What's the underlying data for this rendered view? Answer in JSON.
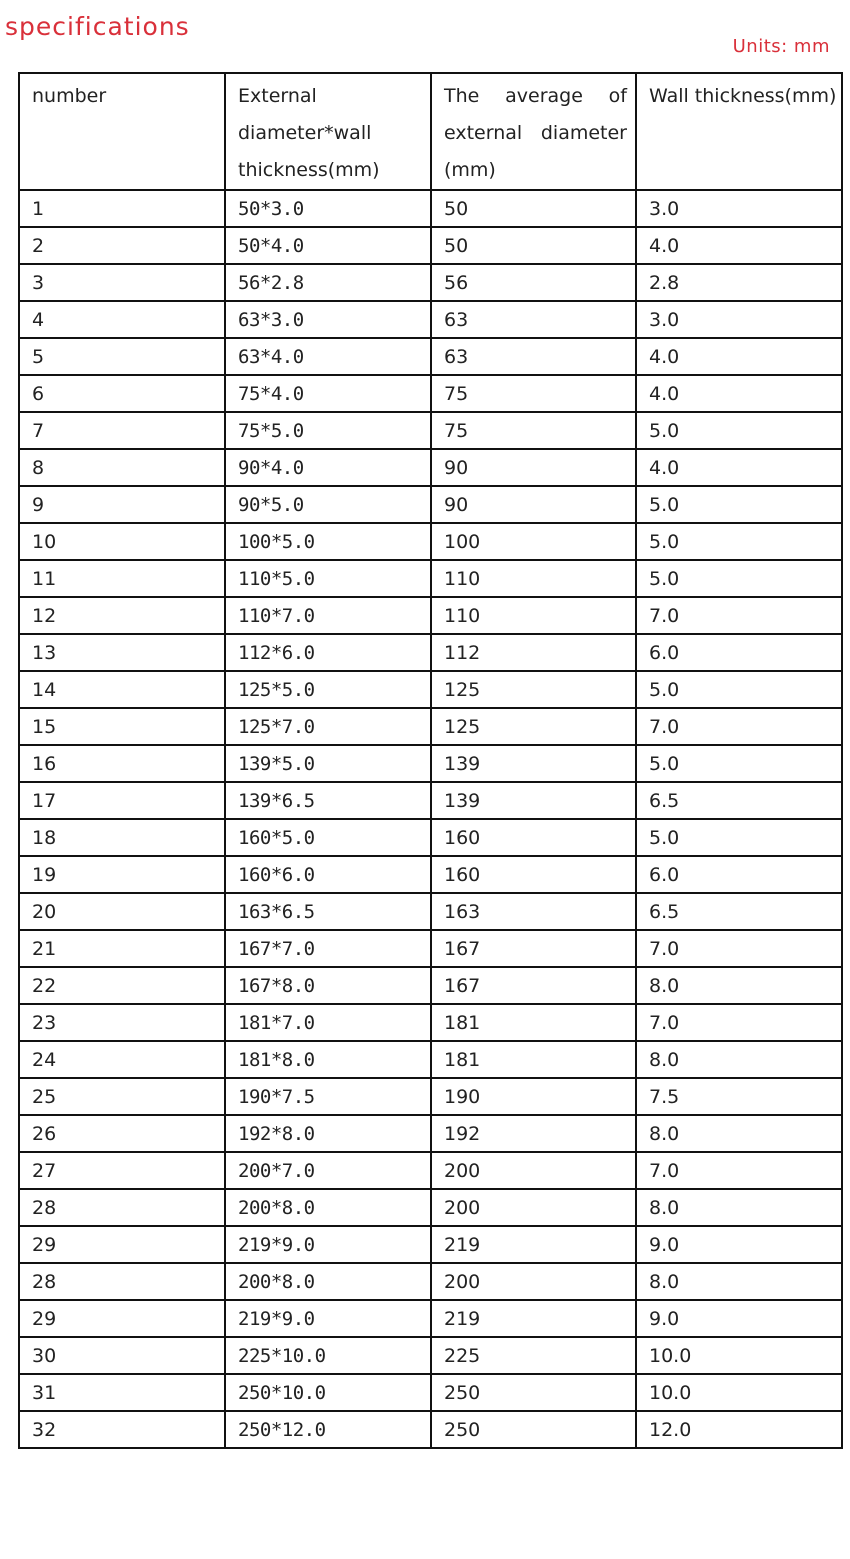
{
  "title": "specifications",
  "units": "Units: mm",
  "table": {
    "headers": [
      "number",
      "External diameter*wall thickness(mm)",
      "The average of external diameter (mm)",
      "Wall thickness(mm)"
    ],
    "rows": [
      [
        "1",
        "50*3.0",
        "50",
        "3.0"
      ],
      [
        "2",
        "50*4.0",
        "50",
        "4.0"
      ],
      [
        "3",
        "56*2.8",
        "56",
        "2.8"
      ],
      [
        "4",
        "63*3.0",
        "63",
        "3.0"
      ],
      [
        "5",
        "63*4.0",
        "63",
        "4.0"
      ],
      [
        "6",
        "75*4.0",
        "75",
        "4.0"
      ],
      [
        "7",
        "75*5.0",
        "75",
        "5.0"
      ],
      [
        "8",
        "90*4.0",
        "90",
        "4.0"
      ],
      [
        "9",
        "90*5.0",
        "90",
        "5.0"
      ],
      [
        "10",
        "100*5.0",
        "100",
        "5.0"
      ],
      [
        "11",
        "110*5.0",
        "110",
        "5.0"
      ],
      [
        "12",
        "110*7.0",
        "110",
        "7.0"
      ],
      [
        "13",
        "112*6.0",
        "112",
        "6.0"
      ],
      [
        "14",
        "125*5.0",
        "125",
        "5.0"
      ],
      [
        "15",
        "125*7.0",
        "125",
        "7.0"
      ],
      [
        "16",
        "139*5.0",
        "139",
        "5.0"
      ],
      [
        "17",
        "139*6.5",
        "139",
        "6.5"
      ],
      [
        "18",
        "160*5.0",
        "160",
        "5.0"
      ],
      [
        "19",
        "160*6.0",
        "160",
        "6.0"
      ],
      [
        "20",
        "163*6.5",
        "163",
        "6.5"
      ],
      [
        "21",
        "167*7.0",
        "167",
        "7.0"
      ],
      [
        "22",
        "167*8.0",
        "167",
        "8.0"
      ],
      [
        "23",
        "181*7.0",
        "181",
        "7.0"
      ],
      [
        "24",
        "181*8.0",
        "181",
        "8.0"
      ],
      [
        "25",
        "190*7.5",
        "190",
        "7.5"
      ],
      [
        "26",
        "192*8.0",
        "192",
        "8.0"
      ],
      [
        "27",
        "200*7.0",
        "200",
        "7.0"
      ],
      [
        "28",
        "200*8.0",
        "200",
        "8.0"
      ],
      [
        "29",
        "219*9.0",
        "219",
        "9.0"
      ],
      [
        "28",
        "200*8.0",
        "200",
        "8.0"
      ],
      [
        "29",
        "219*9.0",
        "219",
        "9.0"
      ],
      [
        "30",
        "225*10.0",
        "225",
        "10.0"
      ],
      [
        "31",
        "250*10.0",
        "250",
        "10.0"
      ],
      [
        "32",
        "250*12.0",
        "250",
        "12.0"
      ]
    ]
  }
}
